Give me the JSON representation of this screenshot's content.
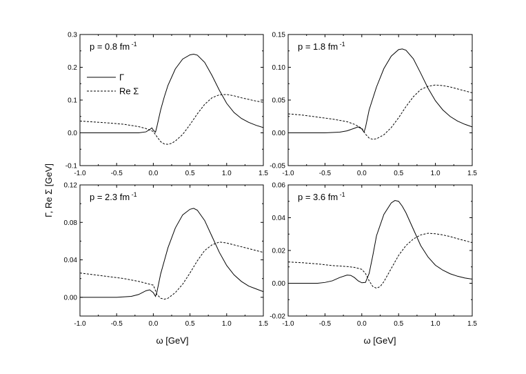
{
  "figure": {
    "ylabel": "Γ, Re Σ [GeV]",
    "xlabel": "ω [GeV]"
  },
  "legend": {
    "placement": "left, below label in first panel",
    "entries": [
      {
        "label": "Γ",
        "style": "solid"
      },
      {
        "label": "Re Σ",
        "style": "dashed"
      }
    ]
  },
  "chart_data": [
    {
      "type": "line",
      "panel_label": "p = 0.8 fm",
      "panel_label_sup": "-1",
      "xlim": [
        -1.0,
        1.5
      ],
      "ylim": [
        -0.1,
        0.3
      ],
      "xticks": [
        "-1.0",
        "-0.5",
        "0.0",
        "0.5",
        "1.0",
        "1.5"
      ],
      "yticks": [
        "-0.1",
        "0.0",
        "0.1",
        "0.2",
        "0.3"
      ],
      "series": [
        {
          "name": "Γ",
          "style": "solid",
          "x": [
            -1.0,
            -0.5,
            -0.2,
            -0.1,
            -0.05,
            -0.02,
            0.0,
            0.03,
            0.05,
            0.1,
            0.15,
            0.2,
            0.3,
            0.4,
            0.5,
            0.55,
            0.6,
            0.7,
            0.8,
            0.9,
            1.0,
            1.1,
            1.2,
            1.3,
            1.4,
            1.5
          ],
          "y": [
            0.0,
            0.0,
            0.0,
            0.003,
            0.01,
            0.015,
            0.008,
            0.002,
            0.02,
            0.07,
            0.11,
            0.145,
            0.195,
            0.225,
            0.238,
            0.24,
            0.237,
            0.215,
            0.175,
            0.13,
            0.09,
            0.062,
            0.044,
            0.032,
            0.023,
            0.016
          ]
        },
        {
          "name": "Re Σ",
          "style": "dashed",
          "x": [
            -1.0,
            -0.8,
            -0.6,
            -0.4,
            -0.2,
            -0.1,
            0.0,
            0.05,
            0.1,
            0.15,
            0.2,
            0.25,
            0.3,
            0.4,
            0.5,
            0.6,
            0.7,
            0.8,
            0.9,
            1.0,
            1.1,
            1.2,
            1.3,
            1.4,
            1.5
          ],
          "y": [
            0.036,
            0.033,
            0.03,
            0.026,
            0.019,
            0.013,
            0.004,
            -0.012,
            -0.027,
            -0.034,
            -0.035,
            -0.032,
            -0.025,
            -0.005,
            0.025,
            0.058,
            0.087,
            0.107,
            0.116,
            0.117,
            0.113,
            0.107,
            0.102,
            0.097,
            0.093
          ]
        }
      ]
    },
    {
      "type": "line",
      "panel_label": "p = 1.8 fm",
      "panel_label_sup": "-1",
      "xlim": [
        -1.0,
        1.5
      ],
      "ylim": [
        -0.05,
        0.15
      ],
      "xticks": [
        "-1.0",
        "-0.5",
        "0.0",
        "0.5",
        "1.0",
        "1.5"
      ],
      "yticks": [
        "-0.05",
        "0.00",
        "0.05",
        "0.10",
        "0.15"
      ],
      "series": [
        {
          "name": "Γ",
          "style": "solid",
          "x": [
            -1.0,
            -0.5,
            -0.3,
            -0.2,
            -0.1,
            -0.05,
            0.0,
            0.03,
            0.05,
            0.1,
            0.2,
            0.3,
            0.4,
            0.5,
            0.55,
            0.6,
            0.7,
            0.8,
            0.9,
            1.0,
            1.1,
            1.2,
            1.3,
            1.4,
            1.5
          ],
          "y": [
            0.0,
            0.0,
            0.001,
            0.003,
            0.007,
            0.009,
            0.006,
            0.001,
            0.008,
            0.035,
            0.07,
            0.098,
            0.117,
            0.127,
            0.128,
            0.126,
            0.113,
            0.091,
            0.068,
            0.049,
            0.035,
            0.025,
            0.018,
            0.013,
            0.009
          ]
        },
        {
          "name": "Re Σ",
          "style": "dashed",
          "x": [
            -1.0,
            -0.8,
            -0.6,
            -0.4,
            -0.2,
            -0.1,
            0.0,
            0.05,
            0.1,
            0.15,
            0.2,
            0.3,
            0.4,
            0.5,
            0.6,
            0.7,
            0.8,
            0.9,
            1.0,
            1.1,
            1.2,
            1.3,
            1.4,
            1.5
          ],
          "y": [
            0.029,
            0.027,
            0.024,
            0.021,
            0.017,
            0.013,
            0.007,
            -0.002,
            -0.008,
            -0.01,
            -0.009,
            -0.003,
            0.008,
            0.023,
            0.04,
            0.055,
            0.066,
            0.071,
            0.073,
            0.072,
            0.07,
            0.067,
            0.064,
            0.061
          ]
        }
      ]
    },
    {
      "type": "line",
      "panel_label": "p = 2.3 fm",
      "panel_label_sup": "-1",
      "xlim": [
        -1.0,
        1.5
      ],
      "ylim": [
        -0.02,
        0.12
      ],
      "xticks": [
        "-1.0",
        "-0.5",
        "0.0",
        "0.5",
        "1.0",
        "1.5"
      ],
      "yticks": [
        "0.00",
        "0.04",
        "0.08",
        "0.12"
      ],
      "series": [
        {
          "name": "Γ",
          "style": "solid",
          "x": [
            -1.0,
            -0.5,
            -0.3,
            -0.2,
            -0.1,
            -0.05,
            0.0,
            0.03,
            0.05,
            0.1,
            0.2,
            0.3,
            0.4,
            0.5,
            0.55,
            0.6,
            0.7,
            0.8,
            0.9,
            1.0,
            1.1,
            1.2,
            1.3,
            1.4,
            1.5
          ],
          "y": [
            0.0,
            0.0,
            0.001,
            0.003,
            0.007,
            0.008,
            0.005,
            0.001,
            0.006,
            0.025,
            0.053,
            0.074,
            0.088,
            0.094,
            0.095,
            0.093,
            0.082,
            0.065,
            0.048,
            0.034,
            0.024,
            0.017,
            0.012,
            0.009,
            0.006
          ]
        },
        {
          "name": "Re Σ",
          "style": "dashed",
          "x": [
            -1.0,
            -0.8,
            -0.6,
            -0.4,
            -0.2,
            -0.1,
            0.0,
            0.05,
            0.1,
            0.15,
            0.2,
            0.3,
            0.4,
            0.5,
            0.6,
            0.7,
            0.8,
            0.9,
            1.0,
            1.1,
            1.2,
            1.3,
            1.4,
            1.5
          ],
          "y": [
            0.026,
            0.024,
            0.022,
            0.02,
            0.017,
            0.015,
            0.013,
            0.003,
            -0.001,
            -0.002,
            -0.001,
            0.005,
            0.014,
            0.026,
            0.039,
            0.05,
            0.056,
            0.059,
            0.058,
            0.056,
            0.054,
            0.052,
            0.05,
            0.048
          ]
        }
      ]
    },
    {
      "type": "line",
      "panel_label": "p = 3.6 fm",
      "panel_label_sup": "-1",
      "xlim": [
        -1.0,
        1.5
      ],
      "ylim": [
        -0.02,
        0.06
      ],
      "xticks": [
        "-1.0",
        "-0.5",
        "0.0",
        "0.5",
        "1.0",
        "1.5"
      ],
      "yticks": [
        "-0.02",
        "0.00",
        "0.02",
        "0.04",
        "0.06"
      ],
      "series": [
        {
          "name": "Γ",
          "style": "solid",
          "x": [
            -1.0,
            -0.6,
            -0.5,
            -0.4,
            -0.3,
            -0.2,
            -0.15,
            -0.1,
            -0.05,
            0.0,
            0.05,
            0.1,
            0.15,
            0.2,
            0.3,
            0.4,
            0.45,
            0.5,
            0.55,
            0.6,
            0.7,
            0.8,
            0.9,
            1.0,
            1.1,
            1.2,
            1.3,
            1.4,
            1.5
          ],
          "y": [
            0.0,
            0.0,
            0.0005,
            0.0015,
            0.0035,
            0.005,
            0.0048,
            0.0035,
            0.0015,
            0.0003,
            0.0005,
            0.006,
            0.017,
            0.029,
            0.042,
            0.049,
            0.0505,
            0.05,
            0.047,
            0.043,
            0.033,
            0.023,
            0.016,
            0.011,
            0.008,
            0.0058,
            0.0043,
            0.0032,
            0.0025
          ]
        },
        {
          "name": "Re Σ",
          "style": "dashed",
          "x": [
            -1.0,
            -0.8,
            -0.6,
            -0.4,
            -0.2,
            -0.1,
            0.0,
            0.05,
            0.1,
            0.15,
            0.2,
            0.25,
            0.3,
            0.4,
            0.5,
            0.6,
            0.7,
            0.8,
            0.9,
            1.0,
            1.1,
            1.2,
            1.3,
            1.4,
            1.5
          ],
          "y": [
            0.013,
            0.0125,
            0.0118,
            0.0108,
            0.0102,
            0.0097,
            0.0085,
            0.006,
            0.0015,
            -0.002,
            -0.003,
            -0.002,
            0.001,
            0.009,
            0.017,
            0.023,
            0.027,
            0.0295,
            0.0305,
            0.0302,
            0.0295,
            0.0285,
            0.0272,
            0.026,
            0.0248
          ]
        }
      ]
    }
  ]
}
